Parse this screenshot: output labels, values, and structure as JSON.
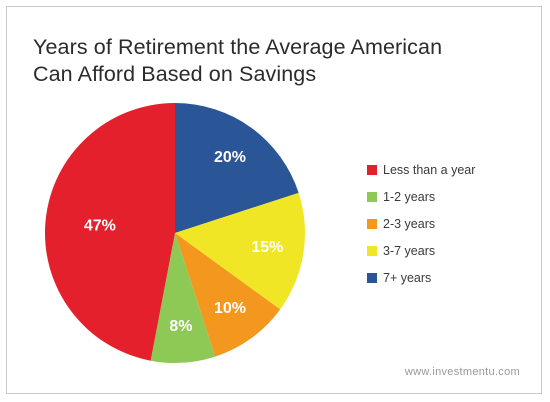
{
  "chart_data": {
    "type": "pie",
    "title": [
      "Years of Retirement the Average American",
      "Can Afford Based on Savings"
    ],
    "slices": [
      {
        "label": "Less than a year",
        "value": 47,
        "display": "47%",
        "color": "#e4202c"
      },
      {
        "label": "1-2 years",
        "value": 8,
        "display": "8%",
        "color": "#8ec855"
      },
      {
        "label": "2-3 years",
        "value": 10,
        "display": "10%",
        "color": "#f4971f"
      },
      {
        "label": "3-7 years",
        "value": 15,
        "display": "15%",
        "color": "#f1e625"
      },
      {
        "label": "7+ years",
        "value": 20,
        "display": "20%",
        "color": "#2a5597"
      }
    ],
    "draw_order": [
      "7+ years",
      "3-7 years",
      "2-3 years",
      "1-2 years",
      "Less than a year"
    ],
    "start": "12 o'clock",
    "direction": "clockwise",
    "legend_position": "right"
  },
  "watermark": "www.investmentu.com"
}
